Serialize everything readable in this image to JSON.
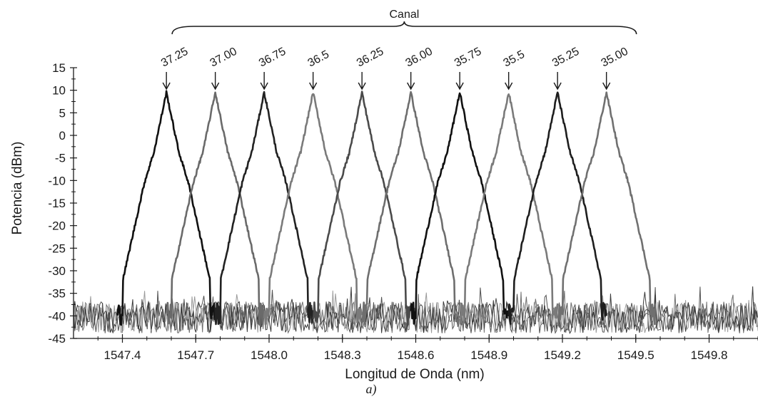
{
  "chart_data": {
    "type": "line",
    "title": "",
    "xlabel": "Longitud de Onda (nm)",
    "ylabel": "Potencia (dBm)",
    "caption": "a)",
    "xlim": [
      1547.2,
      1550.0
    ],
    "ylim": [
      -45,
      15
    ],
    "x_ticks": [
      1547.4,
      1547.7,
      1548.0,
      1548.3,
      1548.6,
      1548.9,
      1549.2,
      1549.5,
      1549.8
    ],
    "x_tick_labels": [
      "1547.4",
      "1547.7",
      "1548.0",
      "1548.3",
      "1548.6",
      "1548.9",
      "1549.2",
      "1549.5",
      "1549.8"
    ],
    "y_ticks": [
      15,
      10,
      5,
      0,
      -5,
      -10,
      -15,
      -20,
      -25,
      -30,
      -35,
      -40,
      -45
    ],
    "y_tick_labels": [
      "15",
      "10",
      "5",
      "0",
      "-5",
      "-10",
      "-15",
      "-20",
      "-25",
      "-30",
      "-35",
      "-40",
      "-45"
    ],
    "noise_floor_dbm": -40,
    "peak_power_dbm": 9.5,
    "grid": false,
    "channel_group_label": "Canal",
    "channels": [
      {
        "label": "37.25",
        "peak_nm": 1547.58,
        "color": "#111111"
      },
      {
        "label": "37.00",
        "peak_nm": 1547.78,
        "color": "#6a6a6a"
      },
      {
        "label": "36.75",
        "peak_nm": 1547.98,
        "color": "#222222"
      },
      {
        "label": "36.5",
        "peak_nm": 1548.18,
        "color": "#7a7a7a"
      },
      {
        "label": "36.25",
        "peak_nm": 1548.38,
        "color": "#4a4a4a"
      },
      {
        "label": "36.00",
        "peak_nm": 1548.58,
        "color": "#6e6e6e"
      },
      {
        "label": "35.75",
        "peak_nm": 1548.78,
        "color": "#111111"
      },
      {
        "label": "35.5",
        "peak_nm": 1548.98,
        "color": "#7a7a7a"
      },
      {
        "label": "35.25",
        "peak_nm": 1549.18,
        "color": "#1e1e1e"
      },
      {
        "label": "35.00",
        "peak_nm": 1549.38,
        "color": "#707070"
      }
    ]
  }
}
